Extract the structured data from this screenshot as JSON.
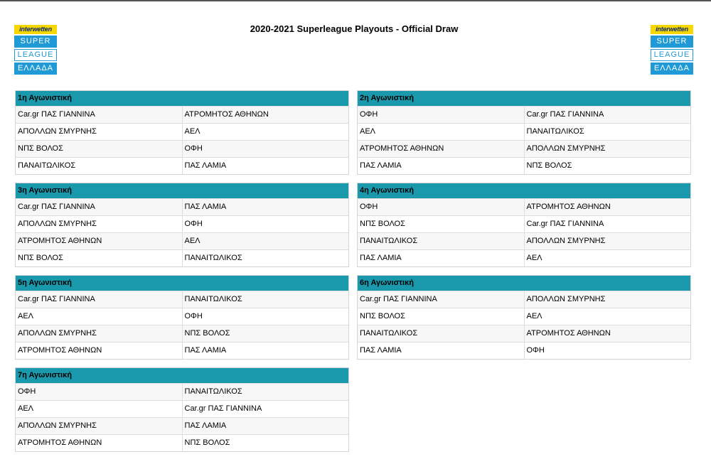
{
  "title": "2020-2021 Superleague Playouts - Official Draw",
  "logo": {
    "brand": "interwetten",
    "bands": [
      "SUPER",
      "LEAGUE",
      "ΕΛΛΑΔΑ"
    ]
  },
  "rounds": [
    {
      "label": "1η Αγωνιστική",
      "matches": [
        {
          "home": "Car.gr ΠΑΣ ΓΙΑΝΝΙΝΑ",
          "away": "ΑΤΡΟΜΗΤΟΣ ΑΘΗΝΩΝ"
        },
        {
          "home": "ΑΠΟΛΛΩΝ ΣΜΥΡΝΗΣ",
          "away": "ΑΕΛ"
        },
        {
          "home": "ΝΠΣ ΒΟΛΟΣ",
          "away": "ΟΦΗ"
        },
        {
          "home": "ΠΑΝΑΙΤΩΛΙΚΟΣ",
          "away": "ΠΑΣ ΛΑΜΙΑ"
        }
      ]
    },
    {
      "label": "2η Αγωνιστική",
      "matches": [
        {
          "home": "ΟΦΗ",
          "away": "Car.gr ΠΑΣ ΓΙΑΝΝΙΝΑ"
        },
        {
          "home": "ΑΕΛ",
          "away": "ΠΑΝΑΙΤΩΛΙΚΟΣ"
        },
        {
          "home": "ΑΤΡΟΜΗΤΟΣ ΑΘΗΝΩΝ",
          "away": "ΑΠΟΛΛΩΝ ΣΜΥΡΝΗΣ"
        },
        {
          "home": "ΠΑΣ ΛΑΜΙΑ",
          "away": "ΝΠΣ ΒΟΛΟΣ"
        }
      ]
    },
    {
      "label": "3η Αγωνιστική",
      "matches": [
        {
          "home": "Car.gr ΠΑΣ ΓΙΑΝΝΙΝΑ",
          "away": "ΠΑΣ ΛΑΜΙΑ"
        },
        {
          "home": "ΑΠΟΛΛΩΝ ΣΜΥΡΝΗΣ",
          "away": "ΟΦΗ"
        },
        {
          "home": "ΑΤΡΟΜΗΤΟΣ ΑΘΗΝΩΝ",
          "away": "ΑΕΛ"
        },
        {
          "home": "ΝΠΣ ΒΟΛΟΣ",
          "away": "ΠΑΝΑΙΤΩΛΙΚΟΣ"
        }
      ]
    },
    {
      "label": "4η Αγωνιστική",
      "matches": [
        {
          "home": "ΟΦΗ",
          "away": "ΑΤΡΟΜΗΤΟΣ ΑΘΗΝΩΝ"
        },
        {
          "home": "ΝΠΣ ΒΟΛΟΣ",
          "away": "Car.gr ΠΑΣ ΓΙΑΝΝΙΝΑ"
        },
        {
          "home": "ΠΑΝΑΙΤΩΛΙΚΟΣ",
          "away": "ΑΠΟΛΛΩΝ ΣΜΥΡΝΗΣ"
        },
        {
          "home": "ΠΑΣ ΛΑΜΙΑ",
          "away": "ΑΕΛ"
        }
      ]
    },
    {
      "label": "5η Αγωνιστική",
      "matches": [
        {
          "home": "Car.gr ΠΑΣ ΓΙΑΝΝΙΝΑ",
          "away": "ΠΑΝΑΙΤΩΛΙΚΟΣ"
        },
        {
          "home": "ΑΕΛ",
          "away": "ΟΦΗ"
        },
        {
          "home": "ΑΠΟΛΛΩΝ ΣΜΥΡΝΗΣ",
          "away": "ΝΠΣ ΒΟΛΟΣ"
        },
        {
          "home": "ΑΤΡΟΜΗΤΟΣ ΑΘΗΝΩΝ",
          "away": "ΠΑΣ ΛΑΜΙΑ"
        }
      ]
    },
    {
      "label": "6η Αγωνιστική",
      "matches": [
        {
          "home": "Car.gr ΠΑΣ ΓΙΑΝΝΙΝΑ",
          "away": "ΑΠΟΛΛΩΝ ΣΜΥΡΝΗΣ"
        },
        {
          "home": "ΝΠΣ ΒΟΛΟΣ",
          "away": "ΑΕΛ"
        },
        {
          "home": "ΠΑΝΑΙΤΩΛΙΚΟΣ",
          "away": "ΑΤΡΟΜΗΤΟΣ ΑΘΗΝΩΝ"
        },
        {
          "home": "ΠΑΣ ΛΑΜΙΑ",
          "away": "ΟΦΗ"
        }
      ]
    },
    {
      "label": "7η Αγωνιστική",
      "matches": [
        {
          "home": "ΟΦΗ",
          "away": "ΠΑΝΑΙΤΩΛΙΚΟΣ"
        },
        {
          "home": "ΑΕΛ",
          "away": "Car.gr ΠΑΣ ΓΙΑΝΝΙΝΑ"
        },
        {
          "home": "ΑΠΟΛΛΩΝ ΣΜΥΡΝΗΣ",
          "away": "ΠΑΣ ΛΑΜΙΑ"
        },
        {
          "home": "ΑΤΡΟΜΗΤΟΣ ΑΘΗΝΩΝ",
          "away": "ΝΠΣ ΒΟΛΟΣ"
        }
      ]
    }
  ]
}
